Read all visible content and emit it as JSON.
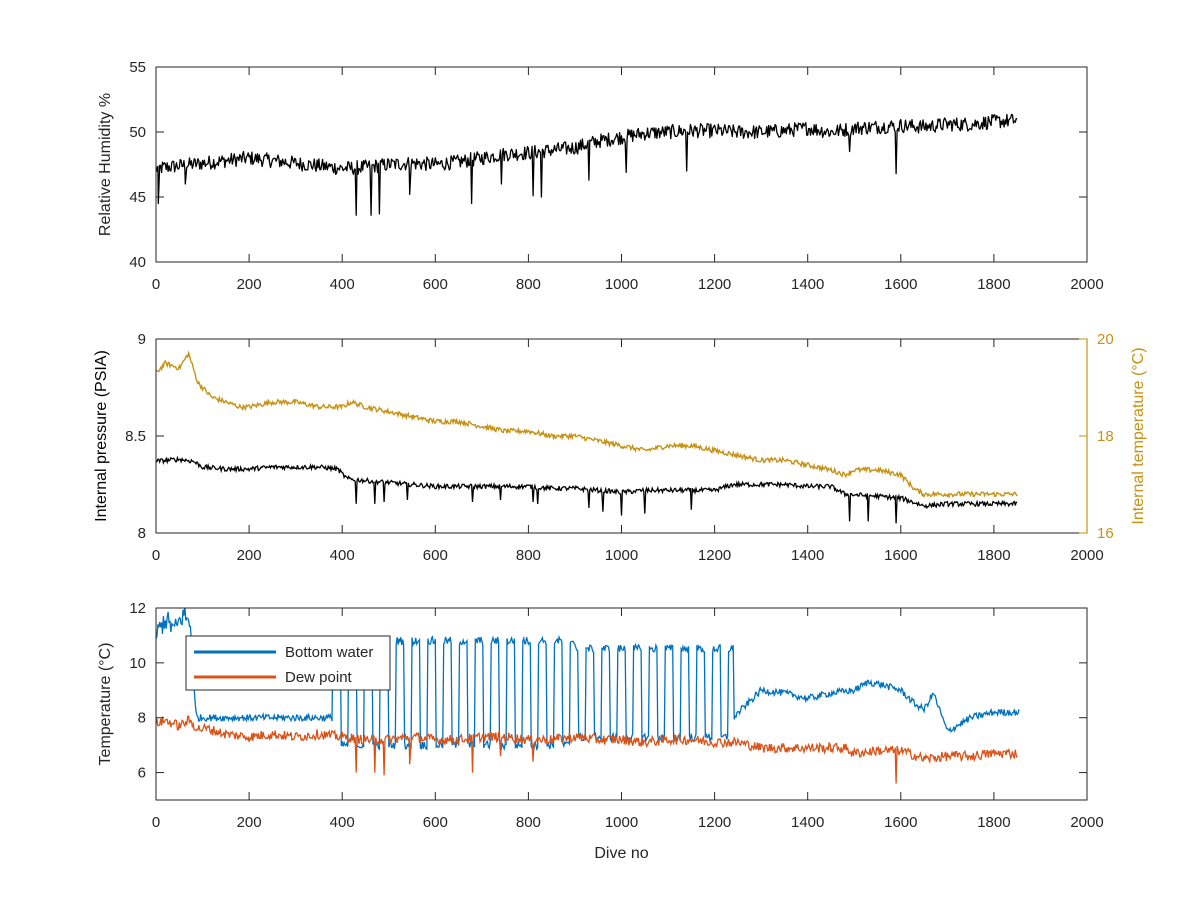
{
  "chart_data": [
    {
      "type": "line",
      "title": "",
      "xlabel": "",
      "ylabel": "Relative Humidity %",
      "xlim": [
        0,
        2000
      ],
      "ylim": [
        40,
        55
      ],
      "xticks": [
        "0",
        "200",
        "400",
        "600",
        "800",
        "1000",
        "1200",
        "1400",
        "1600",
        "1800",
        "2000"
      ],
      "yticks": [
        "40",
        "45",
        "50",
        "55"
      ],
      "grid": false,
      "series": [
        {
          "color": "#000000",
          "x": [
            0,
            50,
            100,
            150,
            200,
            250,
            300,
            350,
            400,
            450,
            500,
            550,
            600,
            650,
            700,
            750,
            800,
            850,
            900,
            950,
            1000,
            1050,
            1100,
            1150,
            1200,
            1250,
            1300,
            1350,
            1400,
            1450,
            1500,
            1550,
            1600,
            1650,
            1700,
            1750,
            1800,
            1850
          ],
          "y": [
            47.2,
            47.4,
            47.6,
            47.8,
            48.0,
            47.8,
            47.6,
            47.4,
            47.2,
            47.3,
            47.5,
            47.6,
            47.5,
            47.7,
            48.0,
            48.3,
            48.4,
            48.6,
            48.8,
            49.3,
            49.6,
            49.9,
            50.0,
            50.1,
            50.1,
            50.0,
            50.0,
            50.1,
            50.3,
            50.0,
            50.3,
            50.4,
            50.5,
            50.4,
            50.6,
            50.6,
            50.8,
            50.9
          ]
        }
      ],
      "dips": [
        {
          "x": 5,
          "y": 44.5
        },
        {
          "x": 63,
          "y": 46.0
        },
        {
          "x": 430,
          "y": 43.6
        },
        {
          "x": 462,
          "y": 43.6
        },
        {
          "x": 480,
          "y": 43.7
        },
        {
          "x": 545,
          "y": 45.2
        },
        {
          "x": 678,
          "y": 44.5
        },
        {
          "x": 742,
          "y": 46.0
        },
        {
          "x": 810,
          "y": 45.1
        },
        {
          "x": 828,
          "y": 45.0
        },
        {
          "x": 930,
          "y": 46.3
        },
        {
          "x": 1010,
          "y": 46.9
        },
        {
          "x": 1140,
          "y": 47.0
        },
        {
          "x": 1490,
          "y": 48.5
        },
        {
          "x": 1590,
          "y": 46.8
        }
      ]
    },
    {
      "type": "line",
      "title": "",
      "xlabel": "",
      "ylabel": "Internal pressure (PSIA)",
      "ylabel_right": "Internal temperature (°C)",
      "xlim": [
        0,
        2000
      ],
      "ylim": [
        8,
        9
      ],
      "ylim_right": [
        16,
        20
      ],
      "xticks": [
        "0",
        "200",
        "400",
        "600",
        "800",
        "1000",
        "1200",
        "1400",
        "1600",
        "1800",
        "2000"
      ],
      "yticks": [
        "8",
        "8.5",
        "9"
      ],
      "yticks_right": [
        "16",
        "18",
        "20"
      ],
      "grid": false,
      "series": [
        {
          "axis": "left",
          "color": "#000000",
          "x": [
            0,
            50,
            80,
            100,
            150,
            180,
            200,
            250,
            300,
            350,
            390,
            410,
            450,
            500,
            550,
            600,
            650,
            700,
            750,
            800,
            850,
            900,
            950,
            1000,
            1050,
            1100,
            1150,
            1200,
            1240,
            1300,
            1350,
            1400,
            1450,
            1480,
            1550,
            1600,
            1650,
            1700,
            1750,
            1800,
            1850
          ],
          "y": [
            8.37,
            8.38,
            8.37,
            8.34,
            8.33,
            8.33,
            8.33,
            8.34,
            8.34,
            8.34,
            8.33,
            8.28,
            8.27,
            8.26,
            8.25,
            8.24,
            8.24,
            8.24,
            8.24,
            8.24,
            8.23,
            8.23,
            8.22,
            8.21,
            8.22,
            8.22,
            8.22,
            8.22,
            8.25,
            8.25,
            8.25,
            8.24,
            8.24,
            8.2,
            8.19,
            8.18,
            8.14,
            8.15,
            8.15,
            8.15,
            8.15
          ]
        },
        {
          "axis": "right",
          "color": "#C69214",
          "x": [
            0,
            20,
            50,
            70,
            90,
            120,
            150,
            180,
            200,
            250,
            300,
            350,
            400,
            420,
            450,
            500,
            550,
            600,
            650,
            700,
            750,
            800,
            850,
            900,
            950,
            1000,
            1050,
            1100,
            1150,
            1200,
            1250,
            1300,
            1350,
            1400,
            1450,
            1480,
            1500,
            1550,
            1600,
            1630,
            1650,
            1700,
            1750,
            1800,
            1850
          ],
          "y": [
            19.3,
            19.5,
            19.4,
            19.7,
            19.1,
            18.8,
            18.7,
            18.6,
            18.6,
            18.7,
            18.7,
            18.6,
            18.6,
            18.7,
            18.6,
            18.5,
            18.4,
            18.3,
            18.3,
            18.2,
            18.1,
            18.1,
            18.0,
            18.0,
            17.9,
            17.8,
            17.7,
            17.8,
            17.8,
            17.7,
            17.6,
            17.5,
            17.5,
            17.4,
            17.3,
            17.2,
            17.3,
            17.3,
            17.2,
            16.9,
            16.8,
            16.8,
            16.8,
            16.8,
            16.8
          ]
        }
      ],
      "dips": [
        {
          "x": 430,
          "y": 8.15
        },
        {
          "x": 470,
          "y": 8.15
        },
        {
          "x": 490,
          "y": 8.16
        },
        {
          "x": 540,
          "y": 8.17
        },
        {
          "x": 680,
          "y": 8.16
        },
        {
          "x": 740,
          "y": 8.17
        },
        {
          "x": 810,
          "y": 8.16
        },
        {
          "x": 820,
          "y": 8.15
        },
        {
          "x": 930,
          "y": 8.13
        },
        {
          "x": 960,
          "y": 8.11
        },
        {
          "x": 1000,
          "y": 8.09
        },
        {
          "x": 1050,
          "y": 8.1
        },
        {
          "x": 1150,
          "y": 8.12
        },
        {
          "x": 1490,
          "y": 8.06
        },
        {
          "x": 1530,
          "y": 8.06
        },
        {
          "x": 1590,
          "y": 8.05
        }
      ]
    },
    {
      "type": "line",
      "title": "",
      "xlabel": "Dive no",
      "ylabel": "Temperature (°C)",
      "xlim": [
        0,
        2000
      ],
      "ylim": [
        5,
        12
      ],
      "xticks": [
        "0",
        "200",
        "400",
        "600",
        "800",
        "1000",
        "1200",
        "1400",
        "1600",
        "1800",
        "2000"
      ],
      "yticks": [
        "6",
        "8",
        "10",
        "12"
      ],
      "grid": false,
      "legend": {
        "position": "top-left",
        "entries": [
          "Bottom water",
          "Dew point"
        ]
      },
      "series": [
        {
          "name": "Bottom water",
          "color": "#0072BD",
          "x": [
            0,
            20,
            40,
            60,
            75,
            85,
            380,
            1240,
            1300,
            1350,
            1400,
            1450,
            1500,
            1530,
            1560,
            1600,
            1630,
            1650,
            1670,
            1700,
            1750,
            1800,
            1850
          ],
          "y": [
            11.0,
            11.6,
            11.2,
            11.8,
            11.3,
            8.0,
            8.0,
            8.0,
            9.0,
            8.9,
            8.7,
            8.9,
            9.0,
            9.3,
            9.2,
            9.0,
            8.5,
            8.3,
            8.9,
            7.5,
            8.0,
            8.2,
            8.2
          ]
        },
        {
          "name": "Dew point",
          "color": "#D95319",
          "x": [
            0,
            20,
            50,
            70,
            90,
            110,
            150,
            200,
            250,
            300,
            350,
            400,
            450,
            500,
            550,
            600,
            650,
            700,
            750,
            800,
            850,
            900,
            950,
            1000,
            1050,
            1100,
            1150,
            1200,
            1250,
            1300,
            1350,
            1400,
            1450,
            1480,
            1500,
            1550,
            1600,
            1650,
            1700,
            1750,
            1800,
            1850
          ],
          "y": [
            7.8,
            7.9,
            7.7,
            7.9,
            7.6,
            7.6,
            7.4,
            7.3,
            7.4,
            7.3,
            7.4,
            7.3,
            7.2,
            7.2,
            7.3,
            7.2,
            7.2,
            7.3,
            7.3,
            7.2,
            7.2,
            7.3,
            7.2,
            7.2,
            7.1,
            7.2,
            7.2,
            7.1,
            7.1,
            6.9,
            6.9,
            6.9,
            6.9,
            6.9,
            6.7,
            6.8,
            6.8,
            6.5,
            6.6,
            6.6,
            6.7,
            6.7
          ]
        }
      ],
      "bottom_water_cycles": {
        "x_range": [
          380,
          1240
        ],
        "high": 10.8,
        "low": 7.0
      },
      "dips": [
        {
          "x": 430,
          "y": 6.0
        },
        {
          "x": 470,
          "y": 6.0
        },
        {
          "x": 490,
          "y": 5.9
        },
        {
          "x": 545,
          "y": 6.3
        },
        {
          "x": 680,
          "y": 6.0
        },
        {
          "x": 740,
          "y": 6.6
        },
        {
          "x": 810,
          "y": 6.4
        },
        {
          "x": 1590,
          "y": 5.6
        }
      ]
    }
  ]
}
